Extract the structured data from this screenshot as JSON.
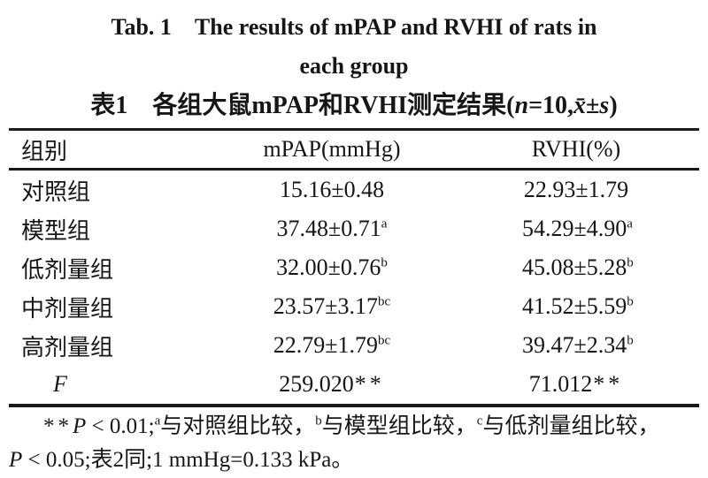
{
  "colors": {
    "background": "#ffffff",
    "text": "#161616",
    "rule": "#1a1a1a"
  },
  "title": {
    "en_line1": "Tab. 1 The results of mPAP and RVHI of rats in",
    "en_line2": "each group",
    "zh_segments": [
      {
        "t": "表1 各组大鼠mPAP和RVHI测定结果("
      },
      {
        "t": "n",
        "i": true
      },
      {
        "t": "=10,"
      },
      {
        "t": "x̄",
        "i": true
      },
      {
        "t": "±"
      },
      {
        "t": "s",
        "i": true
      },
      {
        "t": ")"
      }
    ]
  },
  "table": {
    "headers": {
      "group": "组别",
      "mpap": "mPAP(mmHg)",
      "rvhi": "RVHI(%)"
    },
    "rows": [
      {
        "group": [
          {
            "t": "对照组"
          }
        ],
        "mpap": [
          {
            "t": "15.16±0.48"
          }
        ],
        "rvhi": [
          {
            "t": "22.93±1.79"
          }
        ]
      },
      {
        "group": [
          {
            "t": "模型组"
          }
        ],
        "mpap": [
          {
            "t": "37.48±0.71"
          },
          {
            "sup": "a"
          }
        ],
        "rvhi": [
          {
            "t": "54.29±4.90"
          },
          {
            "sup": "a"
          }
        ]
      },
      {
        "group": [
          {
            "t": "低剂量组"
          }
        ],
        "mpap": [
          {
            "t": "32.00±0.76"
          },
          {
            "sup": "b"
          }
        ],
        "rvhi": [
          {
            "t": "45.08±5.28"
          },
          {
            "sup": "b"
          }
        ]
      },
      {
        "group": [
          {
            "t": "中剂量组"
          }
        ],
        "mpap": [
          {
            "t": "23.57±3.17"
          },
          {
            "sup": "bc"
          }
        ],
        "rvhi": [
          {
            "t": "41.52±5.59"
          },
          {
            "sup": "b"
          }
        ]
      },
      {
        "group": [
          {
            "t": "高剂量组"
          }
        ],
        "mpap": [
          {
            "t": "22.79±1.79"
          },
          {
            "sup": "bc"
          }
        ],
        "rvhi": [
          {
            "t": "39.47±2.34"
          },
          {
            "sup": "b"
          }
        ]
      },
      {
        "group": [
          {
            "t": "F",
            "i": true
          }
        ],
        "mpap": [
          {
            "t": "259.020"
          },
          {
            "t": "**",
            "k": "stars"
          }
        ],
        "rvhi": [
          {
            "t": "71.012"
          },
          {
            "t": "**",
            "k": "stars"
          }
        ]
      }
    ]
  },
  "footnote": {
    "line1_segments": [
      {
        "t": "**",
        "k": "stars"
      },
      {
        "t": "P",
        "i": true
      },
      {
        "t": " < 0.01;"
      },
      {
        "sup": "a"
      },
      {
        "t": "与对照组比较，"
      },
      {
        "sup": "b"
      },
      {
        "t": "与模型组比较，"
      },
      {
        "sup": "c"
      },
      {
        "t": "与低剂量组比较，"
      }
    ],
    "line2_segments": [
      {
        "t": "P",
        "i": true
      },
      {
        "t": " < 0.05;表2同;1 mmHg=0.133 kPa。"
      }
    ]
  }
}
